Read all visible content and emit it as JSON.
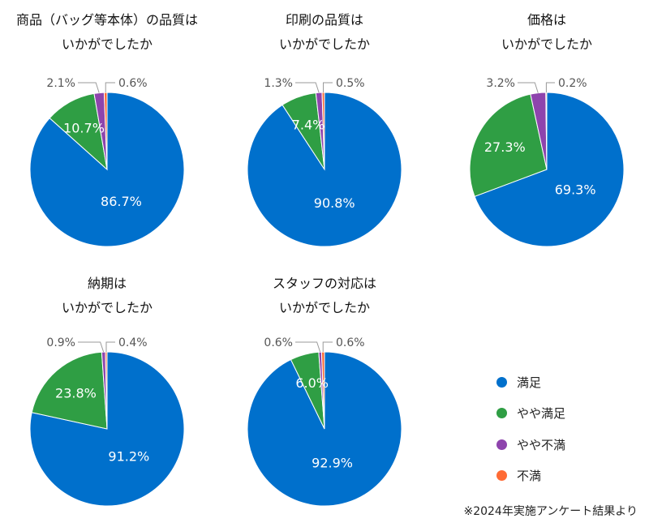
{
  "series_colors": {
    "satisfied": "#0070CC",
    "somewhat_satisfied": "#2F9E44",
    "somewhat_dissatisfied": "#8E44AD",
    "dissatisfied": "#FF6B35"
  },
  "legend": [
    {
      "key": "satisfied",
      "label": "満足"
    },
    {
      "key": "somewhat_satisfied",
      "label": "やや満足"
    },
    {
      "key": "somewhat_dissatisfied",
      "label": "やや不満"
    },
    {
      "key": "dissatisfied",
      "label": "不満"
    }
  ],
  "footnote": "※2024年実施アンケート結果より",
  "chart_data": [
    {
      "type": "pie",
      "title_lines": [
        "商品（バッグ等本体）の品質は",
        "いかがでしたか"
      ],
      "categories": [
        "満足",
        "やや満足",
        "やや不満",
        "不満"
      ],
      "values": [
        86.7,
        10.7,
        2.1,
        0.6
      ],
      "labels": [
        "86.7%",
        "10.7%",
        "2.1%",
        "0.6%"
      ]
    },
    {
      "type": "pie",
      "title_lines": [
        "印刷の品質は",
        "いかがでしたか"
      ],
      "categories": [
        "満足",
        "やや満足",
        "やや不満",
        "不満"
      ],
      "values": [
        90.8,
        7.4,
        1.3,
        0.5
      ],
      "labels": [
        "90.8%",
        "7.4%",
        "1.3%",
        "0.5%"
      ]
    },
    {
      "type": "pie",
      "title_lines": [
        "価格は",
        "いかがでしたか"
      ],
      "categories": [
        "満足",
        "やや満足",
        "やや不満",
        "不満"
      ],
      "values": [
        69.3,
        27.3,
        3.2,
        0.2
      ],
      "labels": [
        "69.3%",
        "27.3%",
        "3.2%",
        "0.2%"
      ]
    },
    {
      "type": "pie",
      "title_lines": [
        "納期は",
        "いかがでしたか"
      ],
      "categories": [
        "満足",
        "やや満足",
        "やや不満",
        "不満"
      ],
      "values": [
        91.2,
        23.8,
        0.9,
        0.4
      ],
      "labels": [
        "91.2%",
        "23.8%",
        "0.9%",
        "0.4%"
      ]
    },
    {
      "type": "pie",
      "title_lines": [
        "スタッフの対応は",
        "いかがでしたか"
      ],
      "categories": [
        "満足",
        "やや満足",
        "やや不満",
        "不満"
      ],
      "values": [
        92.9,
        6.0,
        0.6,
        0.6
      ],
      "labels": [
        "92.9%",
        "6.0%",
        "0.6%",
        "0.6%"
      ]
    }
  ]
}
